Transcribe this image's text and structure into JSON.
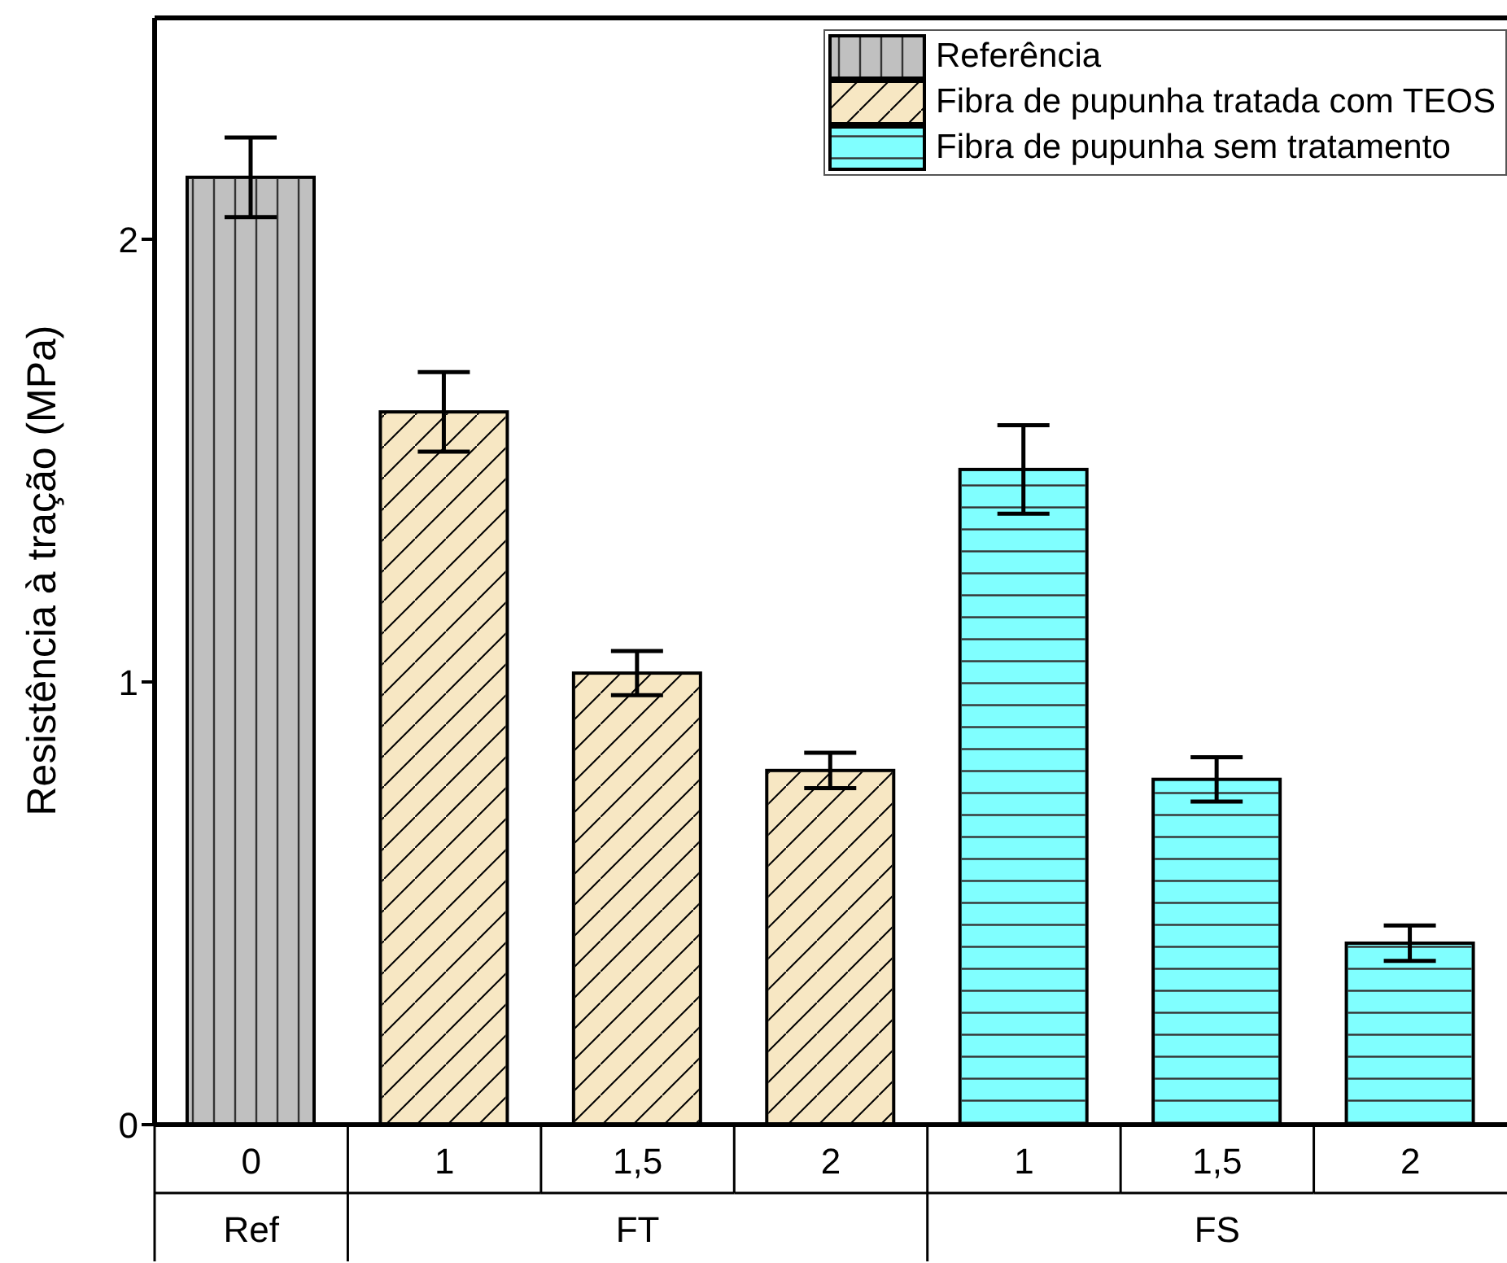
{
  "chart_data": {
    "type": "bar",
    "ylabel": "Resistência à tração (MPa)",
    "categories": [
      "0",
      "1",
      "1,5",
      "2",
      "1",
      "1,5",
      "2"
    ],
    "series": [
      {
        "name": "Referência",
        "color": "#c0c0c0",
        "values": [
          2.14,
          null,
          null,
          null,
          null,
          null,
          null
        ],
        "errors": [
          0.09,
          null,
          null,
          null,
          null,
          null,
          null
        ]
      },
      {
        "name": "Fibra de pupunha tratada com TEOS",
        "color": "#f7e7c3",
        "values": [
          null,
          1.61,
          1.02,
          0.8,
          null,
          null,
          null
        ],
        "errors": [
          null,
          0.09,
          0.05,
          0.04,
          null,
          null,
          null
        ]
      },
      {
        "name": "Fibra de pupunha sem tratamento",
        "color": "#80ffff",
        "values": [
          null,
          null,
          null,
          null,
          1.48,
          0.78,
          0.41
        ],
        "errors": [
          null,
          null,
          null,
          null,
          0.1,
          0.05,
          0.04
        ]
      }
    ],
    "annotations": [
      "Ref",
      "FT",
      "FS"
    ],
    "ylim": [
      0,
      2.5
    ],
    "yticks": [
      0,
      1,
      2
    ],
    "grid": false,
    "legend": "top right"
  }
}
